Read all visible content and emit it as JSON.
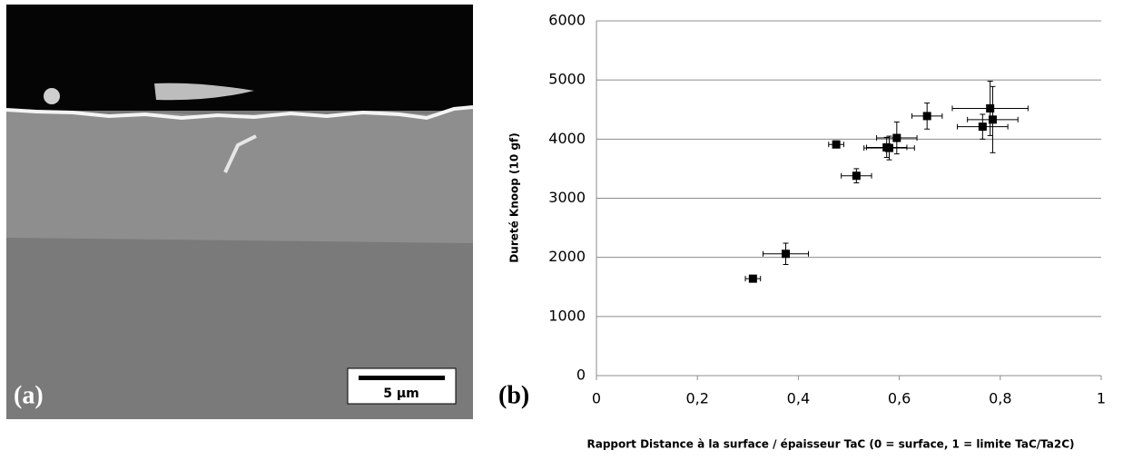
{
  "panel_a": {
    "label": "(a)",
    "scale_bar": "5 µm"
  },
  "chart_data": {
    "type": "scatter",
    "panel_label": "(b)",
    "y_label": "Dureté Knoop (10 gf)",
    "x_label": "Rapport Distance à la surface / épaisseur TaC (0 = surface,  1 = limite TaC/Ta2C)",
    "series": [
      {
        "color": "#000000",
        "x": [
          0.31,
          0.375,
          0.475,
          0.515,
          0.575,
          0.58,
          0.595,
          0.655,
          0.765,
          0.78,
          0.785
        ],
        "y": [
          1640,
          2060,
          3910,
          3380,
          3860,
          3850,
          4020,
          4390,
          4210,
          4520,
          4330
        ],
        "xerr": [
          0.015,
          0.045,
          0.015,
          0.03,
          0.04,
          0.05,
          0.04,
          0.03,
          0.05,
          0.075,
          0.05
        ],
        "yerr": [
          40,
          180,
          60,
          120,
          170,
          200,
          270,
          220,
          210,
          460,
          560
        ]
      }
    ],
    "xlim": [
      0,
      1
    ],
    "xticks": [
      0,
      {
        "value": 0.2,
        "label": "0,2"
      },
      {
        "value": 0.4,
        "label": "0,4"
      },
      {
        "value": 0.6,
        "label": "0,6"
      },
      {
        "value": 0.8,
        "label": "0,8"
      },
      1
    ],
    "ylim": [
      0,
      6000
    ],
    "yticks": [
      0,
      1000,
      2000,
      3000,
      4000,
      5000,
      6000
    ],
    "grid": true
  }
}
